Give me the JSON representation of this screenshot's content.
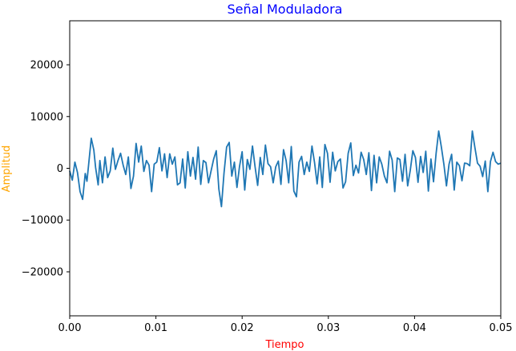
{
  "chart_data": {
    "type": "line",
    "title": "Señal Moduladora",
    "xlabel": "Tiempo",
    "ylabel": "Amplitud",
    "xlim": [
      0.0,
      0.05
    ],
    "ylim": [
      -28500,
      28500
    ],
    "grid": false,
    "colors": {
      "title": "#0000ff",
      "xlabel": "#ff0000",
      "ylabel": "#ffa500",
      "line": "#1f77b4"
    },
    "x_ticks": [
      {
        "value": 0.0,
        "label": "0.00"
      },
      {
        "value": 0.01,
        "label": "0.01"
      },
      {
        "value": 0.02,
        "label": "0.02"
      },
      {
        "value": 0.03,
        "label": "0.03"
      },
      {
        "value": 0.04,
        "label": "0.04"
      },
      {
        "value": 0.05,
        "label": "0.05"
      }
    ],
    "y_ticks": [
      {
        "value": 20000,
        "label": "20000"
      },
      {
        "value": 10000,
        "label": "10000"
      },
      {
        "value": 0,
        "label": "0"
      },
      {
        "value": -10000,
        "label": "−10000"
      },
      {
        "value": -20000,
        "label": "−20000"
      }
    ],
    "series": [
      {
        "x": [
          0.0,
          0.0003,
          0.0006,
          0.0009,
          0.0012,
          0.0015,
          0.0018,
          0.002,
          0.0022,
          0.0025,
          0.0028,
          0.003,
          0.0033,
          0.0035,
          0.0038,
          0.0041,
          0.0044,
          0.0047,
          0.005,
          0.0053,
          0.0056,
          0.0059,
          0.0062,
          0.0065,
          0.0068,
          0.0071,
          0.0074,
          0.0077,
          0.008,
          0.0083,
          0.0086,
          0.0089,
          0.0092,
          0.0095,
          0.0098,
          0.0101,
          0.0104,
          0.0107,
          0.011,
          0.0113,
          0.0116,
          0.0119,
          0.0122,
          0.0125,
          0.0128,
          0.0131,
          0.0134,
          0.0137,
          0.014,
          0.0143,
          0.0146,
          0.0149,
          0.0152,
          0.0155,
          0.0158,
          0.0161,
          0.0164,
          0.0167,
          0.017,
          0.0173,
          0.0176,
          0.0179,
          0.0182,
          0.0185,
          0.0188,
          0.0191,
          0.0194,
          0.0197,
          0.02,
          0.0203,
          0.0206,
          0.0209,
          0.0212,
          0.0215,
          0.0218,
          0.0221,
          0.0224,
          0.0227,
          0.023,
          0.0233,
          0.0236,
          0.0239,
          0.0242,
          0.0245,
          0.0248,
          0.0251,
          0.0254,
          0.0257,
          0.026,
          0.0263,
          0.0266,
          0.0269,
          0.0272,
          0.0275,
          0.0278,
          0.0281,
          0.0284,
          0.0287,
          0.029,
          0.0293,
          0.0296,
          0.0299,
          0.0302,
          0.0305,
          0.0308,
          0.0311,
          0.0314,
          0.0317,
          0.032,
          0.0323,
          0.0326,
          0.0329,
          0.0332,
          0.0335,
          0.0338,
          0.0341,
          0.0344,
          0.0347,
          0.035,
          0.0353,
          0.0356,
          0.0359,
          0.0362,
          0.0365,
          0.0368,
          0.0371,
          0.0374,
          0.0377,
          0.038,
          0.0383,
          0.0386,
          0.0389,
          0.0392,
          0.0395,
          0.0398,
          0.0401,
          0.0404,
          0.0407,
          0.041,
          0.0413,
          0.0416,
          0.0419,
          0.0422,
          0.0425,
          0.0428,
          0.0431,
          0.0434,
          0.0437,
          0.044,
          0.0443,
          0.0446,
          0.0449,
          0.0452,
          0.0455,
          0.0458,
          0.0461,
          0.0464,
          0.0467,
          0.047,
          0.0473,
          0.0476,
          0.0479,
          0.0482,
          0.0485,
          0.0488,
          0.0491,
          0.0494,
          0.0497,
          0.05
        ],
        "y": [
          -500,
          -2300,
          1200,
          -800,
          -4500,
          -6000,
          -1000,
          -2500,
          800,
          5800,
          3500,
          200,
          -3200,
          1500,
          -2800,
          2200,
          -1800,
          -500,
          3900,
          -200,
          1500,
          2900,
          600,
          -1200,
          2200,
          -3900,
          -1500,
          4800,
          1200,
          4300,
          -600,
          1500,
          600,
          -4500,
          800,
          1200,
          4000,
          -500,
          2800,
          -1800,
          2800,
          800,
          2200,
          -3200,
          -2800,
          1800,
          -3800,
          3200,
          -1500,
          2100,
          -2100,
          4100,
          -3100,
          1500,
          1100,
          -2800,
          -500,
          1800,
          3400,
          -4000,
          -7400,
          -900,
          4100,
          5000,
          -1500,
          1200,
          -3700,
          400,
          3200,
          -4200,
          1700,
          -200,
          4300,
          300,
          -3300,
          2100,
          -1200,
          4500,
          900,
          300,
          -2800,
          300,
          1400,
          -3100,
          3600,
          1500,
          -2800,
          4200,
          -4400,
          -5500,
          1200,
          2300,
          -1200,
          1200,
          -600,
          4300,
          1100,
          -3000,
          2200,
          -3700,
          4600,
          2900,
          -2700,
          3100,
          -500,
          1300,
          1800,
          -3800,
          -2600,
          2900,
          4900,
          -1400,
          600,
          -900,
          3100,
          1700,
          -1200,
          3000,
          -4300,
          2500,
          -2800,
          2200,
          800,
          -1500,
          -2800,
          3300,
          1600,
          -4500,
          2000,
          1700,
          -2500,
          2700,
          -3400,
          -400,
          3400,
          2100,
          -2700,
          2300,
          -800,
          3300,
          -4400,
          1800,
          -2600,
          2900,
          7200,
          4200,
          800,
          -3400,
          800,
          2700,
          -4200,
          1200,
          500,
          -2400,
          1000,
          900,
          500,
          7200,
          4000,
          1000,
          400,
          -1600,
          1400,
          -4500,
          1300,
          3100,
          1300,
          800,
          1000
        ],
        "color": "#1f77b4"
      }
    ]
  }
}
